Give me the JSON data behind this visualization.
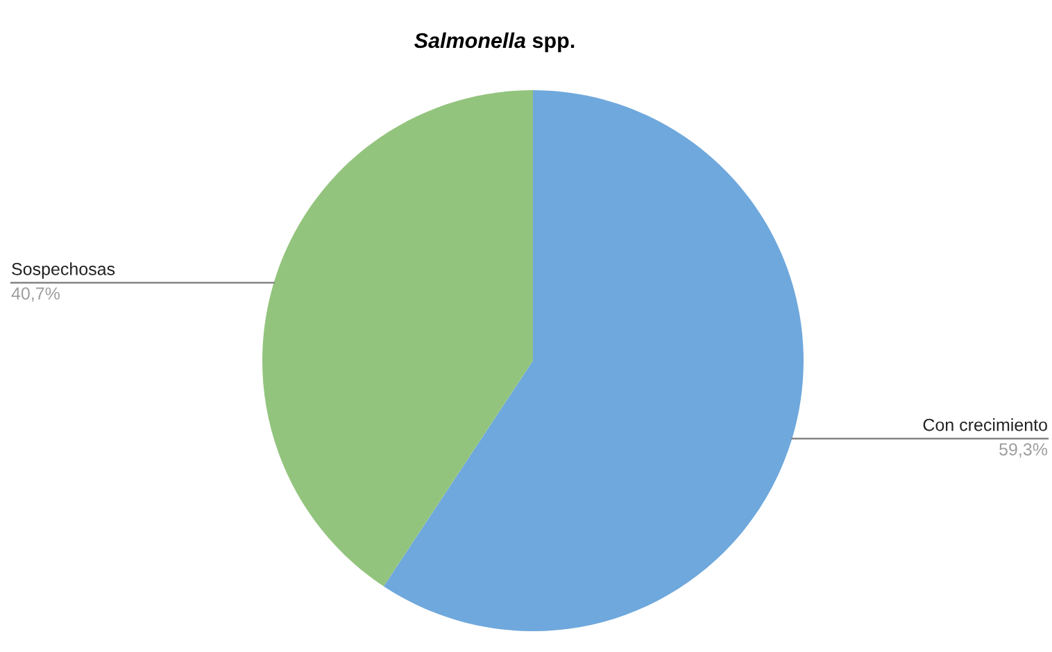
{
  "chart_data": {
    "type": "pie",
    "title": "Salmonella spp.",
    "categories": [
      "Con crecimiento",
      "Sospechosas"
    ],
    "values": [
      59.3,
      40.7
    ],
    "colors": [
      "#6fa8dc",
      "#93c47d"
    ],
    "value_labels": [
      "59,3%",
      "40,7%"
    ]
  }
}
